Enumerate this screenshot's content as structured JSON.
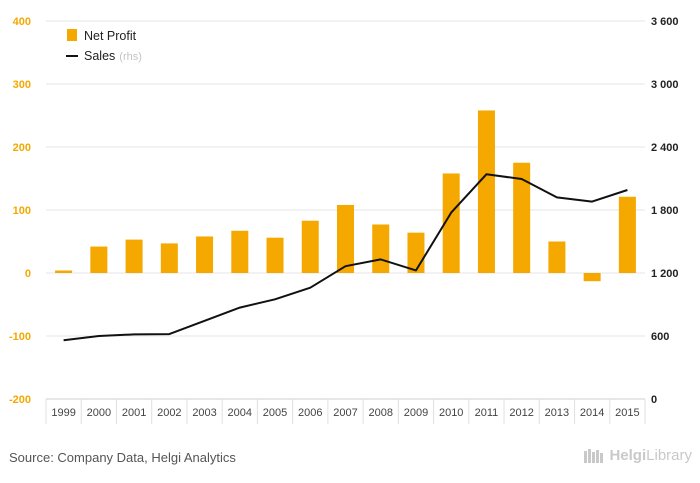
{
  "chart_data": {
    "type": "bar",
    "categories": [
      "1999",
      "2000",
      "2001",
      "2002",
      "2003",
      "2004",
      "2005",
      "2006",
      "2007",
      "2008",
      "2009",
      "2010",
      "2011",
      "2012",
      "2013",
      "2014",
      "2015"
    ],
    "series": [
      {
        "name": "Net Profit",
        "type": "bar",
        "axis": "left",
        "color": "#f5a800",
        "values": [
          4,
          42,
          53,
          47,
          58,
          67,
          56,
          83,
          108,
          77,
          64,
          158,
          258,
          175,
          50,
          -13,
          121
        ]
      },
      {
        "name": "Sales",
        "name_suffix": "(rhs)",
        "type": "line",
        "axis": "right",
        "color": "#111111",
        "values": [
          560,
          600,
          615,
          618,
          745,
          870,
          950,
          1060,
          1265,
          1330,
          1225,
          1775,
          2140,
          2095,
          1920,
          1880,
          1990
        ]
      }
    ],
    "y_left": {
      "lim": [
        -200,
        400
      ],
      "ticks": [
        -200,
        -100,
        0,
        100,
        200,
        300,
        400
      ],
      "tick_labels": [
        "-200",
        "-100",
        "0",
        "100",
        "200",
        "300",
        "400"
      ]
    },
    "y_right": {
      "lim": [
        0,
        3600
      ],
      "ticks": [
        0,
        600,
        1200,
        1800,
        2400,
        3000,
        3600
      ],
      "tick_labels": [
        "0",
        "600",
        "1 200",
        "1 800",
        "2 400",
        "3 000",
        "3 600"
      ]
    },
    "grid": true,
    "legend_position": "top-left"
  },
  "footer": {
    "source": "Source: Company Data, Helgi Analytics",
    "logo_prefix": "Helgi",
    "logo_suffix": "Library"
  }
}
